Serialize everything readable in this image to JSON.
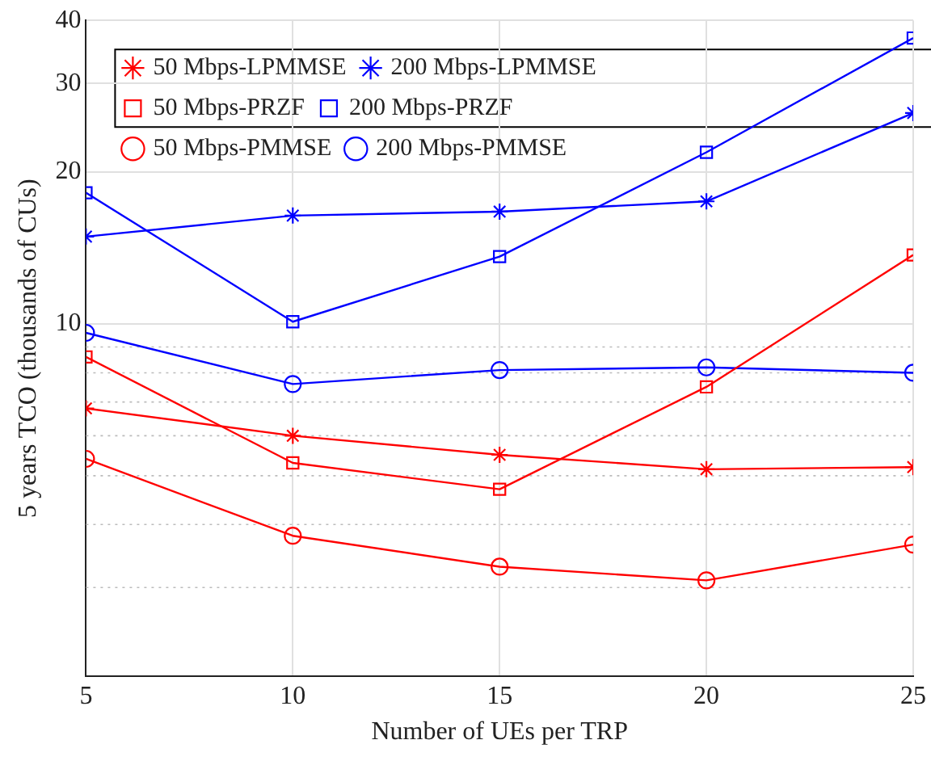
{
  "chart_data": {
    "type": "line",
    "xlabel": "Number of UEs per TRP",
    "ylabel": "5 years TCO (thousands of CUs)",
    "x": [
      5,
      10,
      15,
      20,
      25
    ],
    "xlim": [
      5,
      25
    ],
    "xticks": [
      5,
      10,
      15,
      20,
      25
    ],
    "ylim": [
      2,
      40
    ],
    "yticks": [
      {
        "value": 3,
        "label": null
      },
      {
        "value": 4,
        "label": null
      },
      {
        "value": 5,
        "label": null
      },
      {
        "value": 6,
        "label": null
      },
      {
        "value": 7,
        "label": null
      },
      {
        "value": 8,
        "label": null
      },
      {
        "value": 9,
        "label": null
      },
      10,
      20,
      30,
      40
    ],
    "log": "y",
    "grid": true,
    "legend": "top left",
    "line_style": "solid",
    "series": [
      {
        "name": "50 Mbps-LPMMSE",
        "color": "#ff0000",
        "marker": "cross",
        "values": [
          6.8,
          6.0,
          5.5,
          5.15,
          5.2
        ]
      },
      {
        "name": "50 Mbps-PRZF",
        "color": "#ff0000",
        "marker": "square",
        "values": [
          8.6,
          5.3,
          4.7,
          7.5,
          13.7
        ]
      },
      {
        "name": "50 Mbps-PMMSE",
        "color": "#ff0000",
        "marker": "circle",
        "values": [
          5.4,
          3.8,
          3.3,
          3.1,
          3.65
        ]
      },
      {
        "name": "200 Mbps-LPMMSE",
        "color": "#0000ff",
        "marker": "cross",
        "values": [
          14.9,
          16.4,
          16.7,
          17.5,
          26.2
        ]
      },
      {
        "name": "200 Mbps-PRZF",
        "color": "#0000ff",
        "marker": "square",
        "values": [
          18.2,
          10.1,
          13.6,
          21.9,
          36.9
        ]
      },
      {
        "name": "200 Mbps-PMMSE",
        "color": "#0000ff",
        "marker": "circle",
        "values": [
          9.6,
          7.6,
          8.1,
          8.2,
          8.0
        ]
      }
    ]
  }
}
